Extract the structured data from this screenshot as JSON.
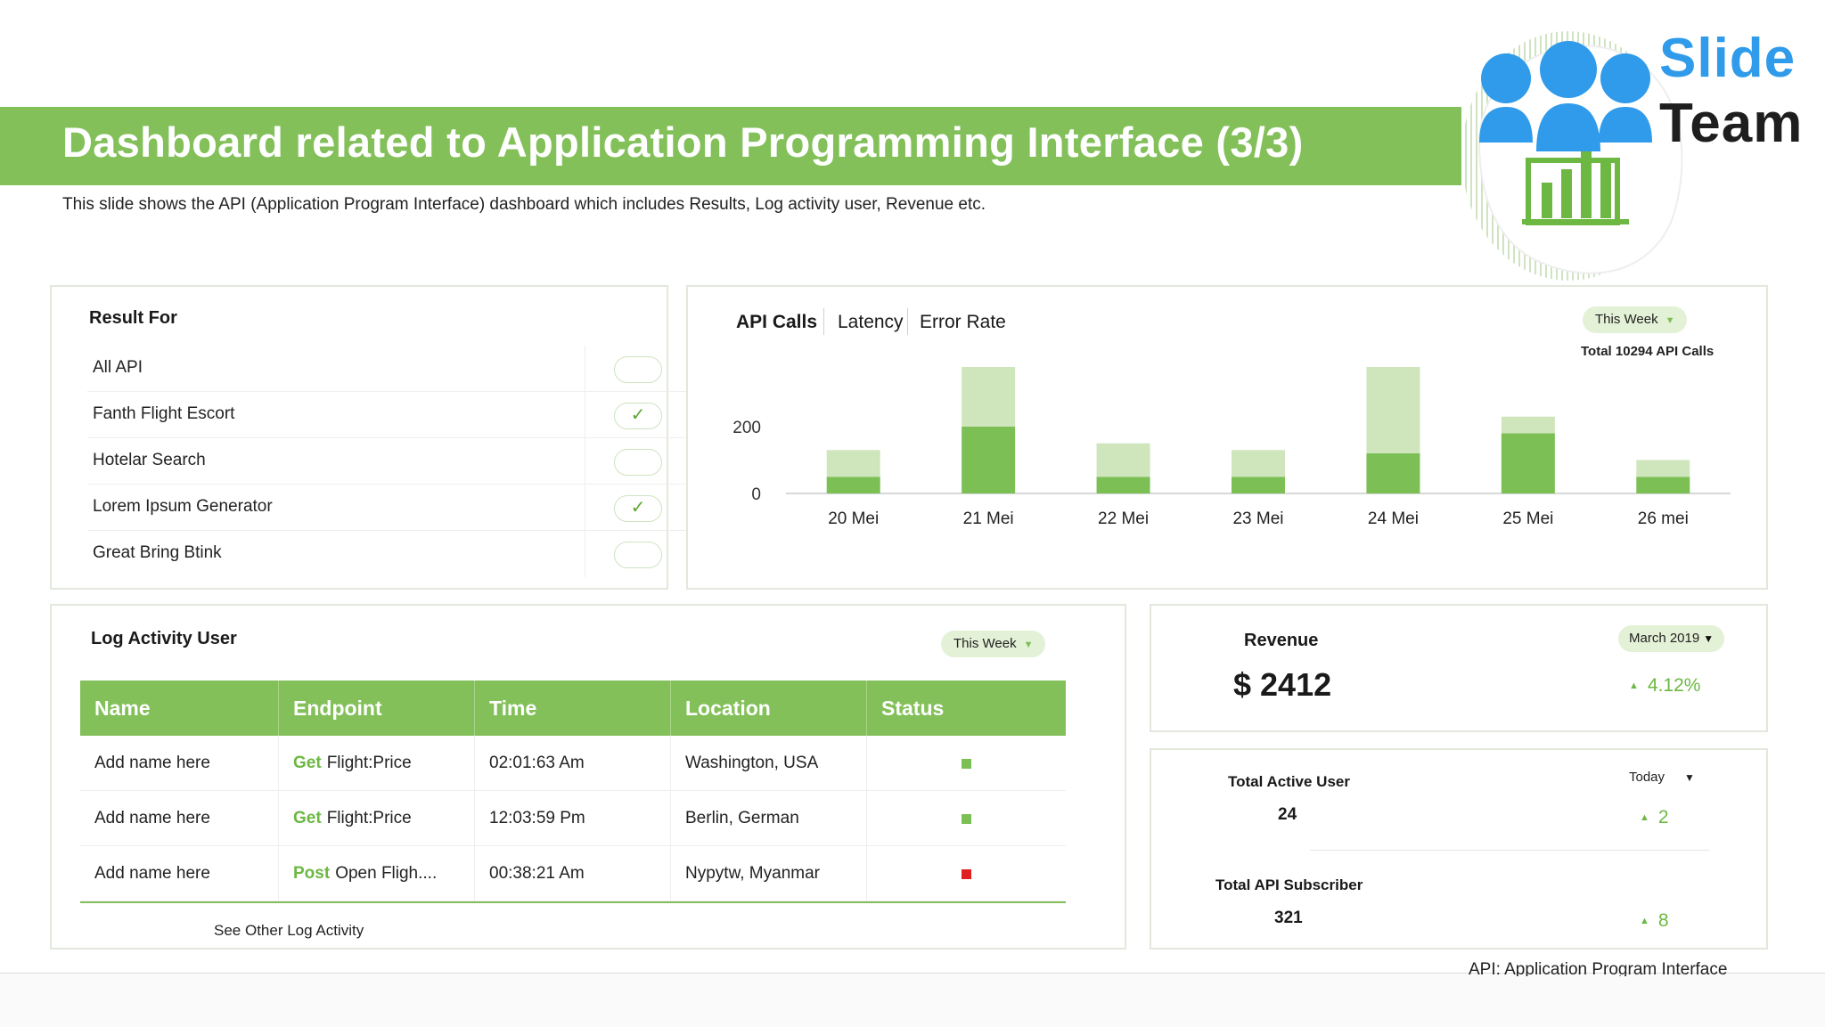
{
  "header": {
    "title": "Dashboard related to Application Programming Interface (3/3)",
    "subtitle": "This slide shows the API (Application Program Interface) dashboard which includes Results, Log activity user, Revenue etc."
  },
  "logo": {
    "word1": "Slide",
    "word2": "Team"
  },
  "result_for": {
    "title": "Result For",
    "items": [
      {
        "label": "All API",
        "checked": false
      },
      {
        "label": "Fanth Flight Escort",
        "checked": true
      },
      {
        "label": "Hotelar Search",
        "checked": false
      },
      {
        "label": "Lorem Ipsum Generator",
        "checked": true
      },
      {
        "label": "Great Bring Btink",
        "checked": false
      }
    ],
    "check_glyph": "✓"
  },
  "api_panel": {
    "tabs": [
      "API Calls",
      "Latency",
      "Error Rate"
    ],
    "period": "This Week",
    "total": "Total 10294 API Calls"
  },
  "chart_data": {
    "type": "bar",
    "categories": [
      "20 Mei",
      "21 Mei",
      "22 Mei",
      "23 Mei",
      "24 Mei",
      "25 Mei",
      "26 mei"
    ],
    "series": [
      {
        "values": [
          50,
          200,
          50,
          50,
          120,
          180,
          50
        ],
        "color": "#7cbf55"
      },
      {
        "values": [
          80,
          200,
          100,
          80,
          280,
          50,
          50
        ],
        "color": "#cfe6bd"
      }
    ],
    "stacked": true,
    "yticks": [
      "0",
      "200",
      "400"
    ],
    "ylim": [
      0,
      400
    ],
    "xlabel": "",
    "ylabel": ""
  },
  "log_activity": {
    "title": "Log Activity User",
    "period": "This Week",
    "columns": [
      "Name",
      "Endpoint",
      "Time",
      "Location",
      "Status"
    ],
    "rows": [
      {
        "name": "Add name here",
        "method": "Get",
        "endpoint": "Flight:Price",
        "time": "02:01:63 Am",
        "location": "Washington, USA",
        "status_color": "#7cbf55"
      },
      {
        "name": "Add name here",
        "method": "Get",
        "endpoint": "Flight:Price",
        "time": "12:03:59 Pm",
        "location": "Berlin, German",
        "status_color": "#7cbf55"
      },
      {
        "name": "Add name here",
        "method": "Post",
        "endpoint": "Open Fligh....",
        "time": "00:38:21 Am",
        "location": "Nypytw, Myanmar",
        "status_color": "#e02020"
      }
    ],
    "see_other": "See Other Log Activity"
  },
  "revenue": {
    "title": "Revenue",
    "period": "March 2019",
    "value": "$ 2412",
    "delta": "4.12%"
  },
  "users": {
    "period": "Today",
    "active_label": "Total Active User",
    "active_value": "24",
    "active_delta": "2",
    "subscriber_label": "Total API Subscriber",
    "subscriber_value": "321",
    "subscriber_delta": "8"
  },
  "footnote": "API: Application Program Interface",
  "colors": {
    "accent": "#83c05a",
    "brand_blue": "#2f9bea"
  }
}
